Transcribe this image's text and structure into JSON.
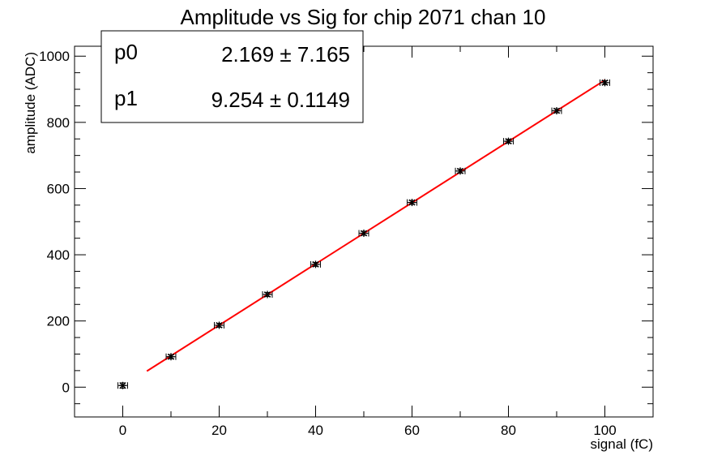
{
  "chart_data": {
    "type": "scatter",
    "title": "Amplitude vs Sig for chip 2071 chan 10",
    "xlabel": "signal (fC)",
    "ylabel": "amplitude (ADC)",
    "xlim": [
      -10,
      110
    ],
    "ylim": [
      -90,
      1030
    ],
    "x_ticks": [
      0,
      20,
      40,
      60,
      80,
      100
    ],
    "y_ticks": [
      0,
      200,
      400,
      600,
      800,
      1000
    ],
    "grid": false,
    "legend": "none",
    "colors": {
      "points": "#000000",
      "fit": "#ff0000",
      "axes": "#000000"
    },
    "series": [
      {
        "x": [
          0,
          10,
          20,
          30,
          40,
          50,
          60,
          70,
          80,
          90,
          100
        ],
        "y": [
          5,
          92,
          187,
          280,
          371,
          465,
          558,
          653,
          743,
          835,
          920
        ],
        "x_err": [
          1,
          1,
          1,
          1,
          1,
          1,
          1,
          1,
          1,
          1,
          1
        ],
        "y_err": [
          8,
          6,
          6,
          6,
          6,
          6,
          6,
          6,
          6,
          6,
          6
        ]
      }
    ],
    "fit": {
      "function": "p0 + p1*x",
      "x_range": [
        5,
        100
      ],
      "p0": 2.169,
      "p1": 9.254
    },
    "stats_box": {
      "rows": [
        {
          "name": "p0",
          "value": "2.169",
          "pm": "±",
          "error": "7.165"
        },
        {
          "name": "p1",
          "value": "9.254",
          "pm": "±",
          "error": "0.1149"
        }
      ]
    }
  }
}
